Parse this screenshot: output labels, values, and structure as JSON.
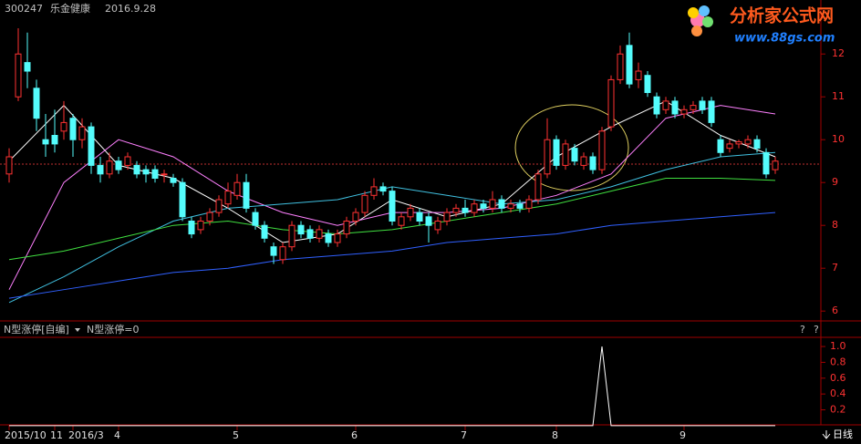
{
  "chart_data": {
    "type": "candlestick",
    "code": "300247",
    "name": "乐金健康",
    "date": "2016.9.28",
    "logo_title": "分析家公式网",
    "logo_url": "www.88gs.com",
    "categories": [
      "2015/10",
      null,
      null,
      null,
      null,
      "11",
      null,
      "2016/3",
      null,
      null,
      null,
      null,
      "4",
      null,
      null,
      null,
      null,
      null,
      null,
      null,
      null,
      null,
      null,
      null,
      null,
      "5",
      null,
      null,
      null,
      null,
      null,
      null,
      null,
      null,
      null,
      null,
      null,
      null,
      "6",
      null,
      null,
      null,
      null,
      null,
      null,
      null,
      null,
      null,
      null,
      null,
      "7",
      null,
      null,
      null,
      null,
      null,
      null,
      null,
      null,
      null,
      "8",
      null,
      null,
      null,
      null,
      null,
      null,
      null,
      null,
      null,
      null,
      null,
      null,
      null,
      "9",
      null,
      null,
      null,
      null,
      null,
      null,
      null,
      null,
      null,
      null
    ],
    "open": [
      9.2,
      11.0,
      11.8,
      11.2,
      10.0,
      10.1,
      10.2,
      10.5,
      10.0,
      10.3,
      9.4,
      9.2,
      9.5,
      9.4,
      9.4,
      9.3,
      9.3,
      9.2,
      9.1,
      9.0,
      8.1,
      7.9,
      8.1,
      8.3,
      8.5,
      8.7,
      9.0,
      8.3,
      8.0,
      7.5,
      7.2,
      7.5,
      8.0,
      7.9,
      7.7,
      7.8,
      7.6,
      7.8,
      8.1,
      8.3,
      8.7,
      8.9,
      8.8,
      8.0,
      8.2,
      8.3,
      8.2,
      7.9,
      8.1,
      8.3,
      8.4,
      8.3,
      8.5,
      8.4,
      8.6,
      8.4,
      8.5,
      8.4,
      8.6,
      9.2,
      10.0,
      9.4,
      9.8,
      9.4,
      9.6,
      9.3,
      10.3,
      11.4,
      12.2,
      11.4,
      11.5,
      11.0,
      10.7,
      10.9,
      10.6,
      10.7,
      10.9,
      10.9,
      10.0,
      9.8,
      9.9,
      9.9,
      10.0,
      9.7,
      9.3
    ],
    "close": [
      9.6,
      12.0,
      11.6,
      10.5,
      9.9,
      9.9,
      10.4,
      10.0,
      10.3,
      9.4,
      9.2,
      9.5,
      9.3,
      9.6,
      9.2,
      9.2,
      9.1,
      9.2,
      9.0,
      8.2,
      7.8,
      8.1,
      8.3,
      8.6,
      8.8,
      9.0,
      8.4,
      8.0,
      7.7,
      7.3,
      7.5,
      8.0,
      7.8,
      7.7,
      7.9,
      7.6,
      7.8,
      8.1,
      8.3,
      8.7,
      8.9,
      8.8,
      8.1,
      8.2,
      8.4,
      8.1,
      8.0,
      8.1,
      8.3,
      8.4,
      8.3,
      8.5,
      8.4,
      8.6,
      8.4,
      8.5,
      8.4,
      8.6,
      9.2,
      10.0,
      9.4,
      9.9,
      9.5,
      9.6,
      9.3,
      10.2,
      11.4,
      12.0,
      11.3,
      11.6,
      11.1,
      10.6,
      10.9,
      10.6,
      10.7,
      10.8,
      10.7,
      10.4,
      9.7,
      9.9,
      9.95,
      10.0,
      9.8,
      9.2,
      9.5
    ],
    "high": [
      9.8,
      12.6,
      12.5,
      11.4,
      10.6,
      10.7,
      10.9,
      10.6,
      10.5,
      10.4,
      9.6,
      9.7,
      9.6,
      9.7,
      9.5,
      9.4,
      9.4,
      9.3,
      9.2,
      9.1,
      8.2,
      8.2,
      8.4,
      8.7,
      9.0,
      9.2,
      9.2,
      8.4,
      8.1,
      7.6,
      7.6,
      8.1,
      8.1,
      8.0,
      8.0,
      7.9,
      7.9,
      8.2,
      8.4,
      8.8,
      9.1,
      9.0,
      8.9,
      8.3,
      8.5,
      8.4,
      8.3,
      8.2,
      8.4,
      8.5,
      8.6,
      8.6,
      8.6,
      8.8,
      8.7,
      8.6,
      8.6,
      8.7,
      9.3,
      10.5,
      10.1,
      10.0,
      9.9,
      9.7,
      9.7,
      10.3,
      11.5,
      12.2,
      12.5,
      11.8,
      11.6,
      11.1,
      11.0,
      11.0,
      10.8,
      10.9,
      11.0,
      11.0,
      10.1,
      10.0,
      10.0,
      10.1,
      10.1,
      9.8,
      9.6
    ],
    "low": [
      9.0,
      10.9,
      11.2,
      10.2,
      9.6,
      9.7,
      10.0,
      9.6,
      9.8,
      9.2,
      9.0,
      9.1,
      9.2,
      9.3,
      9.1,
      9.0,
      9.0,
      9.0,
      8.9,
      8.1,
      7.7,
      7.8,
      8.0,
      8.2,
      8.4,
      8.6,
      8.3,
      7.9,
      7.6,
      7.1,
      7.1,
      7.4,
      7.7,
      7.6,
      7.6,
      7.5,
      7.5,
      7.7,
      8.0,
      8.2,
      8.6,
      8.7,
      8.0,
      7.9,
      8.1,
      8.0,
      7.6,
      7.8,
      8.0,
      8.2,
      8.2,
      8.2,
      8.3,
      8.3,
      8.3,
      8.3,
      8.3,
      8.3,
      8.5,
      9.1,
      9.3,
      9.3,
      9.4,
      9.3,
      9.2,
      9.2,
      10.2,
      11.3,
      11.2,
      11.2,
      11.0,
      10.5,
      10.6,
      10.5,
      10.5,
      10.6,
      10.6,
      10.3,
      9.6,
      9.7,
      9.8,
      9.8,
      9.7,
      9.1,
      9.2
    ],
    "up_color": "#ff3232",
    "down_color": "#54fcfc",
    "line_x": [
      0,
      6,
      12,
      18,
      24,
      30,
      36,
      42,
      48,
      54,
      60,
      66,
      72,
      78,
      84
    ],
    "lines": [
      {
        "color": "#ffffff",
        "values": [
          9.5,
          10.8,
          9.4,
          9.1,
          8.4,
          7.6,
          7.8,
          8.6,
          8.2,
          8.5,
          9.6,
          10.3,
          10.9,
          10.1,
          9.6
        ]
      },
      {
        "color": "#ff80ff",
        "values": [
          6.5,
          9.0,
          10.0,
          9.6,
          8.8,
          8.3,
          8.0,
          8.3,
          8.3,
          8.4,
          8.7,
          9.2,
          10.5,
          10.8,
          10.6
        ]
      },
      {
        "color": "#40c0e0",
        "values": [
          6.2,
          6.8,
          7.5,
          8.1,
          8.4,
          8.5,
          8.6,
          8.9,
          8.7,
          8.5,
          8.6,
          8.9,
          9.3,
          9.6,
          9.7
        ]
      },
      {
        "color": "#40e040",
        "values": [
          7.2,
          7.4,
          7.7,
          8.0,
          8.1,
          7.9,
          7.8,
          7.9,
          8.1,
          8.3,
          8.5,
          8.8,
          9.1,
          9.1,
          9.05
        ]
      },
      {
        "color": "#3060ff",
        "values": [
          6.3,
          6.5,
          6.7,
          6.9,
          7.0,
          7.2,
          7.3,
          7.4,
          7.6,
          7.7,
          7.8,
          8.0,
          8.1,
          8.2,
          8.3
        ]
      }
    ],
    "ref_line": 9.43,
    "ylim": [
      5.77,
      13.26
    ],
    "yticks": [
      6,
      7,
      8,
      9,
      10,
      11,
      12
    ],
    "indicator": {
      "title": "N型涨停[自编]",
      "readout": "N型涨停=0",
      "controls": [
        "?",
        "?"
      ],
      "values": [
        0,
        0,
        0,
        0,
        0,
        0,
        0,
        0,
        0,
        0,
        0,
        0,
        0,
        0,
        0,
        0,
        0,
        0,
        0,
        0,
        0,
        0,
        0,
        0,
        0,
        0,
        0,
        0,
        0,
        0,
        0,
        0,
        0,
        0,
        0,
        0,
        0,
        0,
        0,
        0,
        0,
        0,
        0,
        0,
        0,
        0,
        0,
        0,
        0,
        0,
        0,
        0,
        0,
        0,
        0,
        0,
        0,
        0,
        0,
        0,
        0,
        0,
        0,
        0,
        0,
        1,
        0,
        0,
        0,
        0,
        0,
        0,
        0,
        0,
        0,
        0,
        0,
        0,
        0,
        0,
        0,
        0,
        0,
        0,
        0
      ],
      "ylim": [
        0.01,
        1.116
      ],
      "yticks": [
        {
          "value": 1.0,
          "label": "1.0"
        },
        {
          "value": 0.8,
          "label": "0.8"
        },
        {
          "value": 0.6,
          "label": "0.6"
        },
        {
          "value": 0.4,
          "label": "0.4"
        },
        {
          "value": 0.2,
          "label": "0.2"
        }
      ]
    },
    "timeframe": "日线"
  }
}
